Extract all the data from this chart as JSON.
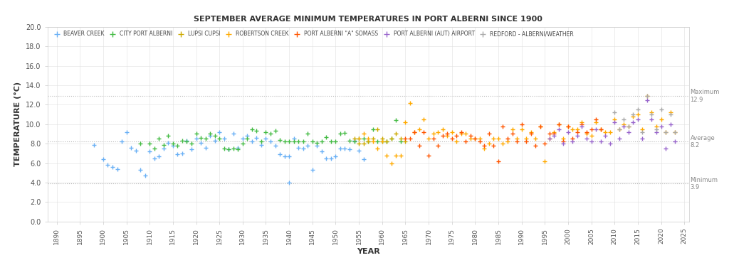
{
  "title": "SEPTEMBER AVERAGE MINIMUM TEMPERATURES IN PORT ALBERNI SINCE 1900",
  "xlabel": "YEAR",
  "ylabel": "TEMPERATURE (°C)",
  "xlim": [
    1888,
    2026
  ],
  "ylim": [
    0.0,
    20.0
  ],
  "yticks": [
    0.0,
    2.0,
    4.0,
    6.0,
    8.0,
    10.0,
    12.0,
    14.0,
    16.0,
    18.0,
    20.0
  ],
  "xticks": [
    1890,
    1895,
    1900,
    1905,
    1910,
    1915,
    1920,
    1925,
    1930,
    1935,
    1940,
    1945,
    1950,
    1955,
    1960,
    1965,
    1970,
    1975,
    1980,
    1985,
    1990,
    1995,
    2000,
    2005,
    2010,
    2015,
    2020,
    2025
  ],
  "average": 8.2,
  "maximum": 12.9,
  "minimum": 3.9,
  "ref_line_color": "#bbbbbb",
  "grid_color": "#e0e0e0",
  "background_color": "#ffffff",
  "annotation_color": "#888888",
  "series": [
    {
      "name": "BEAVER CREEK",
      "color": "#6ab0f5",
      "marker": "+",
      "data": [
        [
          1898,
          7.9
        ],
        [
          1900,
          6.4
        ],
        [
          1901,
          5.8
        ],
        [
          1902,
          5.6
        ],
        [
          1903,
          5.4
        ],
        [
          1904,
          8.2
        ],
        [
          1905,
          9.2
        ],
        [
          1906,
          7.6
        ],
        [
          1907,
          7.3
        ],
        [
          1908,
          5.3
        ],
        [
          1909,
          4.7
        ],
        [
          1910,
          7.2
        ],
        [
          1911,
          6.5
        ],
        [
          1912,
          6.7
        ],
        [
          1913,
          7.5
        ],
        [
          1914,
          8.1
        ],
        [
          1915,
          7.8
        ],
        [
          1916,
          6.9
        ],
        [
          1917,
          7.0
        ],
        [
          1918,
          8.3
        ],
        [
          1919,
          7.4
        ],
        [
          1920,
          8.5
        ],
        [
          1921,
          8.1
        ],
        [
          1922,
          7.6
        ],
        [
          1923,
          8.8
        ],
        [
          1924,
          8.3
        ],
        [
          1925,
          9.2
        ],
        [
          1926,
          8.5
        ],
        [
          1927,
          7.4
        ],
        [
          1928,
          9.0
        ],
        [
          1929,
          7.6
        ],
        [
          1930,
          8.5
        ],
        [
          1931,
          8.8
        ],
        [
          1932,
          8.2
        ],
        [
          1933,
          8.6
        ],
        [
          1934,
          7.9
        ],
        [
          1935,
          8.5
        ],
        [
          1936,
          8.2
        ],
        [
          1937,
          7.8
        ],
        [
          1938,
          6.9
        ],
        [
          1939,
          6.7
        ],
        [
          1940,
          6.7
        ],
        [
          1941,
          8.5
        ],
        [
          1942,
          7.6
        ],
        [
          1943,
          7.5
        ],
        [
          1944,
          7.8
        ],
        [
          1945,
          5.3
        ],
        [
          1946,
          7.8
        ],
        [
          1947,
          7.2
        ],
        [
          1948,
          6.5
        ],
        [
          1949,
          6.5
        ],
        [
          1950,
          6.7
        ],
        [
          1951,
          7.5
        ],
        [
          1952,
          7.5
        ],
        [
          1953,
          7.4
        ],
        [
          1954,
          8.3
        ],
        [
          1955,
          7.3
        ],
        [
          1956,
          6.4
        ],
        [
          1940,
          4.0
        ]
      ]
    },
    {
      "name": "CITY PORT ALBERNI",
      "color": "#44bb44",
      "marker": "+",
      "data": [
        [
          1908,
          8.0
        ],
        [
          1910,
          8.0
        ],
        [
          1911,
          7.5
        ],
        [
          1912,
          8.5
        ],
        [
          1913,
          7.9
        ],
        [
          1914,
          8.8
        ],
        [
          1915,
          8.0
        ],
        [
          1916,
          7.8
        ],
        [
          1917,
          8.3
        ],
        [
          1918,
          8.2
        ],
        [
          1919,
          8.0
        ],
        [
          1920,
          9.0
        ],
        [
          1921,
          8.6
        ],
        [
          1922,
          8.5
        ],
        [
          1923,
          9.0
        ],
        [
          1924,
          8.8
        ],
        [
          1925,
          8.5
        ],
        [
          1926,
          7.5
        ],
        [
          1927,
          7.4
        ],
        [
          1928,
          7.5
        ],
        [
          1929,
          7.4
        ],
        [
          1930,
          8.0
        ],
        [
          1931,
          8.5
        ],
        [
          1932,
          9.5
        ],
        [
          1933,
          9.3
        ],
        [
          1934,
          8.2
        ],
        [
          1935,
          9.2
        ],
        [
          1936,
          9.0
        ],
        [
          1937,
          9.3
        ],
        [
          1938,
          8.4
        ],
        [
          1939,
          8.2
        ],
        [
          1940,
          8.2
        ],
        [
          1941,
          8.2
        ],
        [
          1942,
          8.2
        ],
        [
          1943,
          8.2
        ],
        [
          1944,
          9.0
        ],
        [
          1945,
          8.2
        ],
        [
          1946,
          8.1
        ],
        [
          1947,
          8.2
        ],
        [
          1948,
          8.7
        ],
        [
          1949,
          8.2
        ],
        [
          1950,
          8.2
        ],
        [
          1951,
          9.0
        ],
        [
          1952,
          9.1
        ],
        [
          1953,
          8.3
        ],
        [
          1954,
          8.2
        ],
        [
          1955,
          8.5
        ],
        [
          1956,
          8.5
        ],
        [
          1957,
          8.2
        ],
        [
          1958,
          9.5
        ],
        [
          1959,
          8.2
        ],
        [
          1960,
          8.2
        ],
        [
          1961,
          8.2
        ],
        [
          1962,
          8.5
        ],
        [
          1963,
          10.4
        ],
        [
          1964,
          8.2
        ]
      ]
    },
    {
      "name": "LUPSI CUPSI",
      "color": "#ccaa00",
      "marker": "+",
      "data": [
        [
          1954,
          8.5
        ],
        [
          1955,
          8.0
        ],
        [
          1956,
          8.0
        ],
        [
          1957,
          8.2
        ],
        [
          1958,
          8.5
        ],
        [
          1959,
          9.5
        ],
        [
          1960,
          8.5
        ],
        [
          1961,
          8.2
        ],
        [
          1962,
          8.5
        ],
        [
          1963,
          9.0
        ],
        [
          1964,
          8.5
        ],
        [
          1965,
          8.2
        ]
      ]
    },
    {
      "name": "ROBERTSON CREEK",
      "color": "#ffaa00",
      "marker": "+",
      "data": [
        [
          1955,
          8.5
        ],
        [
          1956,
          9.0
        ],
        [
          1957,
          8.5
        ],
        [
          1958,
          8.2
        ],
        [
          1959,
          7.5
        ],
        [
          1960,
          8.2
        ],
        [
          1961,
          6.8
        ],
        [
          1962,
          6.0
        ],
        [
          1963,
          6.8
        ],
        [
          1964,
          6.8
        ],
        [
          1965,
          10.2
        ],
        [
          1966,
          12.2
        ],
        [
          1967,
          9.2
        ],
        [
          1968,
          9.5
        ],
        [
          1969,
          10.5
        ],
        [
          1970,
          8.5
        ],
        [
          1971,
          9.0
        ],
        [
          1972,
          9.2
        ],
        [
          1973,
          9.5
        ],
        [
          1974,
          8.8
        ],
        [
          1975,
          9.2
        ],
        [
          1976,
          8.2
        ],
        [
          1977,
          9.0
        ],
        [
          1978,
          9.0
        ],
        [
          1979,
          8.5
        ],
        [
          1980,
          8.5
        ],
        [
          1981,
          8.5
        ],
        [
          1982,
          7.5
        ],
        [
          1983,
          8.0
        ],
        [
          1984,
          8.5
        ],
        [
          1985,
          8.5
        ],
        [
          1986,
          8.0
        ],
        [
          1987,
          8.2
        ],
        [
          1988,
          9.5
        ],
        [
          1989,
          8.5
        ],
        [
          1990,
          9.5
        ],
        [
          1991,
          8.5
        ],
        [
          1992,
          9.2
        ],
        [
          1993,
          8.5
        ],
        [
          1994,
          9.8
        ],
        [
          1995,
          6.2
        ],
        [
          1996,
          8.5
        ],
        [
          1997,
          9.2
        ],
        [
          1998,
          10.0
        ],
        [
          1999,
          8.5
        ],
        [
          2000,
          9.8
        ],
        [
          2001,
          9.5
        ],
        [
          2002,
          9.5
        ],
        [
          2003,
          10.2
        ],
        [
          2004,
          9.0
        ],
        [
          2005,
          8.8
        ],
        [
          2006,
          10.2
        ],
        [
          2007,
          9.5
        ],
        [
          2008,
          9.2
        ],
        [
          2009,
          9.2
        ],
        [
          2010,
          10.5
        ],
        [
          2011,
          9.5
        ],
        [
          2012,
          10.0
        ],
        [
          2013,
          9.8
        ],
        [
          2014,
          10.8
        ],
        [
          2015,
          11.0
        ],
        [
          2016,
          9.5
        ],
        [
          2017,
          12.9
        ],
        [
          2018,
          11.2
        ],
        [
          2019,
          9.8
        ],
        [
          2020,
          10.5
        ],
        [
          2021,
          9.2
        ],
        [
          2022,
          11.2
        ],
        [
          2023,
          9.2
        ]
      ]
    },
    {
      "name": "PORT ALBERNI \"A\" SOMASS",
      "color": "#ff5500",
      "marker": "+",
      "data": [
        [
          1965,
          8.5
        ],
        [
          1966,
          8.5
        ],
        [
          1967,
          9.2
        ],
        [
          1968,
          7.8
        ],
        [
          1969,
          9.2
        ],
        [
          1970,
          6.8
        ],
        [
          1971,
          8.5
        ],
        [
          1972,
          7.8
        ],
        [
          1973,
          8.8
        ],
        [
          1974,
          9.0
        ],
        [
          1975,
          8.5
        ],
        [
          1976,
          8.8
        ],
        [
          1977,
          9.2
        ],
        [
          1978,
          8.2
        ],
        [
          1979,
          8.8
        ],
        [
          1980,
          8.5
        ],
        [
          1981,
          8.2
        ],
        [
          1982,
          7.8
        ],
        [
          1983,
          9.0
        ],
        [
          1984,
          7.8
        ],
        [
          1985,
          6.2
        ],
        [
          1986,
          9.8
        ],
        [
          1987,
          8.5
        ],
        [
          1988,
          9.0
        ],
        [
          1989,
          8.2
        ],
        [
          1990,
          10.0
        ],
        [
          1991,
          8.2
        ],
        [
          1992,
          9.0
        ],
        [
          1993,
          7.8
        ],
        [
          1994,
          9.8
        ],
        [
          1995,
          8.0
        ],
        [
          1996,
          9.0
        ],
        [
          1997,
          9.0
        ],
        [
          1998,
          10.0
        ],
        [
          1999,
          8.2
        ],
        [
          2000,
          9.8
        ],
        [
          2001,
          8.5
        ],
        [
          2002,
          9.2
        ],
        [
          2003,
          10.0
        ],
        [
          2004,
          9.2
        ],
        [
          2005,
          9.5
        ],
        [
          2006,
          10.5
        ],
        [
          2007,
          9.5
        ]
      ]
    },
    {
      "name": "PORT ALBERNI (AUT) AIRPORT",
      "color": "#9966cc",
      "marker": "+",
      "data": [
        [
          1996,
          8.5
        ],
        [
          1997,
          8.8
        ],
        [
          1998,
          9.5
        ],
        [
          1999,
          8.0
        ],
        [
          2000,
          9.2
        ],
        [
          2001,
          8.2
        ],
        [
          2002,
          8.8
        ],
        [
          2003,
          9.8
        ],
        [
          2004,
          8.5
        ],
        [
          2005,
          8.2
        ],
        [
          2006,
          9.5
        ],
        [
          2007,
          8.2
        ],
        [
          2008,
          8.8
        ],
        [
          2009,
          8.0
        ],
        [
          2010,
          10.2
        ],
        [
          2011,
          8.5
        ],
        [
          2012,
          9.8
        ],
        [
          2013,
          9.2
        ],
        [
          2014,
          10.2
        ],
        [
          2015,
          10.5
        ],
        [
          2016,
          8.5
        ],
        [
          2017,
          12.5
        ],
        [
          2018,
          10.5
        ],
        [
          2019,
          9.2
        ],
        [
          2020,
          9.8
        ],
        [
          2021,
          7.5
        ],
        [
          2022,
          10.0
        ],
        [
          2023,
          8.2
        ]
      ]
    },
    {
      "name": "REDFORD - ALBERNI/WEATHER",
      "color": "#aaaaaa",
      "marker": "+",
      "data": [
        [
          2010,
          11.2
        ],
        [
          2011,
          9.5
        ],
        [
          2012,
          10.5
        ],
        [
          2013,
          9.8
        ],
        [
          2014,
          11.0
        ],
        [
          2015,
          11.5
        ],
        [
          2016,
          9.2
        ],
        [
          2017,
          12.9
        ],
        [
          2018,
          11.0
        ],
        [
          2019,
          9.5
        ],
        [
          2020,
          11.5
        ],
        [
          2021,
          9.2
        ],
        [
          2022,
          11.0
        ],
        [
          2023,
          9.2
        ]
      ]
    }
  ]
}
